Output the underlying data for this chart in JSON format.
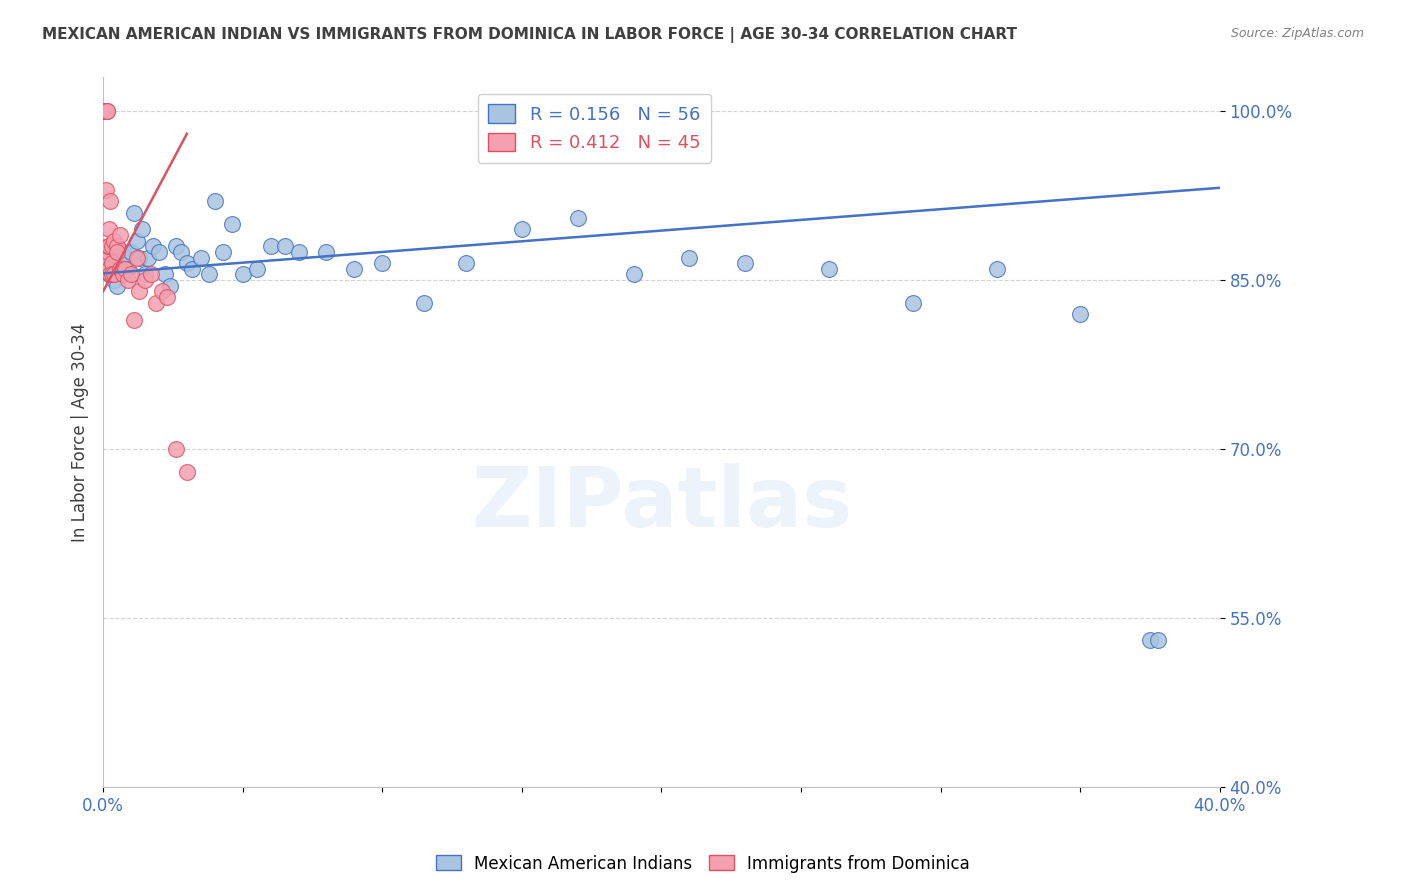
{
  "title": "MEXICAN AMERICAN INDIAN VS IMMIGRANTS FROM DOMINICA IN LABOR FORCE | AGE 30-34 CORRELATION CHART",
  "source": "Source: ZipAtlas.com",
  "xlabel": "",
  "ylabel": "In Labor Force | Age 30-34",
  "xlim": [
    0.0,
    0.4
  ],
  "ylim": [
    0.4,
    1.03
  ],
  "yticks": [
    1.0,
    0.85,
    0.7,
    0.55,
    0.4
  ],
  "ytick_labels": [
    "100.0%",
    "85.0%",
    "70.0%",
    "55.0%",
    "40.0%"
  ],
  "xticks": [
    0.0,
    0.05,
    0.1,
    0.15,
    0.2,
    0.25,
    0.3,
    0.35,
    0.4
  ],
  "xtick_labels": [
    "0.0%",
    "",
    "",
    "",
    "",
    "",
    "",
    "",
    "40.0%"
  ],
  "blue_R": 0.156,
  "blue_N": 56,
  "pink_R": 0.412,
  "pink_N": 45,
  "blue_color": "#a8c4e0",
  "pink_color": "#f4a0b0",
  "blue_line_color": "#4472c4",
  "pink_line_color": "#e05060",
  "title_color": "#404040",
  "axis_color": "#4472c4",
  "watermark": "ZIPatlas",
  "legend_blue_label": "Mexican American Indians",
  "legend_pink_label": "Immigrants from Dominica",
  "blue_scatter_x": [
    0.001,
    0.002,
    0.002,
    0.003,
    0.003,
    0.004,
    0.004,
    0.005,
    0.005,
    0.006,
    0.006,
    0.007,
    0.007,
    0.008,
    0.009,
    0.01,
    0.011,
    0.012,
    0.013,
    0.014,
    0.015,
    0.016,
    0.018,
    0.02,
    0.022,
    0.024,
    0.026,
    0.028,
    0.03,
    0.032,
    0.035,
    0.038,
    0.04,
    0.043,
    0.046,
    0.05,
    0.055,
    0.06,
    0.065,
    0.07,
    0.08,
    0.09,
    0.1,
    0.115,
    0.13,
    0.15,
    0.17,
    0.19,
    0.21,
    0.23,
    0.26,
    0.29,
    0.32,
    0.35,
    0.375,
    0.378
  ],
  "blue_scatter_y": [
    0.858,
    0.862,
    0.855,
    0.87,
    0.86,
    0.875,
    0.85,
    0.88,
    0.845,
    0.86,
    0.865,
    0.875,
    0.855,
    0.87,
    0.86,
    0.875,
    0.91,
    0.885,
    0.87,
    0.895,
    0.855,
    0.87,
    0.88,
    0.875,
    0.855,
    0.845,
    0.88,
    0.875,
    0.865,
    0.86,
    0.87,
    0.855,
    0.92,
    0.875,
    0.9,
    0.855,
    0.86,
    0.88,
    0.88,
    0.875,
    0.875,
    0.86,
    0.865,
    0.83,
    0.865,
    0.895,
    0.905,
    0.855,
    0.87,
    0.865,
    0.86,
    0.83,
    0.86,
    0.82,
    0.53,
    0.53
  ],
  "pink_scatter_x": [
    0.0002,
    0.0003,
    0.0004,
    0.0004,
    0.0005,
    0.0006,
    0.0007,
    0.0008,
    0.0009,
    0.001,
    0.001,
    0.0012,
    0.0013,
    0.0015,
    0.0016,
    0.0017,
    0.0018,
    0.002,
    0.002,
    0.0022,
    0.0023,
    0.0025,
    0.003,
    0.003,
    0.003,
    0.004,
    0.004,
    0.005,
    0.005,
    0.006,
    0.006,
    0.007,
    0.008,
    0.009,
    0.01,
    0.011,
    0.012,
    0.013,
    0.015,
    0.017,
    0.019,
    0.021,
    0.023,
    0.026,
    0.03
  ],
  "pink_scatter_y": [
    0.858,
    0.862,
    0.87,
    1.0,
    1.0,
    1.0,
    1.0,
    1.0,
    1.0,
    1.0,
    0.86,
    0.93,
    1.0,
    1.0,
    0.87,
    0.875,
    0.88,
    0.86,
    0.895,
    0.88,
    0.855,
    0.92,
    0.865,
    0.88,
    0.855,
    0.885,
    0.855,
    0.88,
    0.875,
    0.86,
    0.89,
    0.855,
    0.86,
    0.85,
    0.855,
    0.815,
    0.87,
    0.84,
    0.85,
    0.855,
    0.83,
    0.84,
    0.835,
    0.7,
    0.68
  ],
  "blue_line_x0": 0.0,
  "blue_line_x1": 0.4,
  "blue_line_y0": 0.856,
  "blue_line_y1": 0.932,
  "pink_line_x0": 0.0,
  "pink_line_x1": 0.03,
  "pink_line_y0": 0.84,
  "pink_line_y1": 0.98
}
